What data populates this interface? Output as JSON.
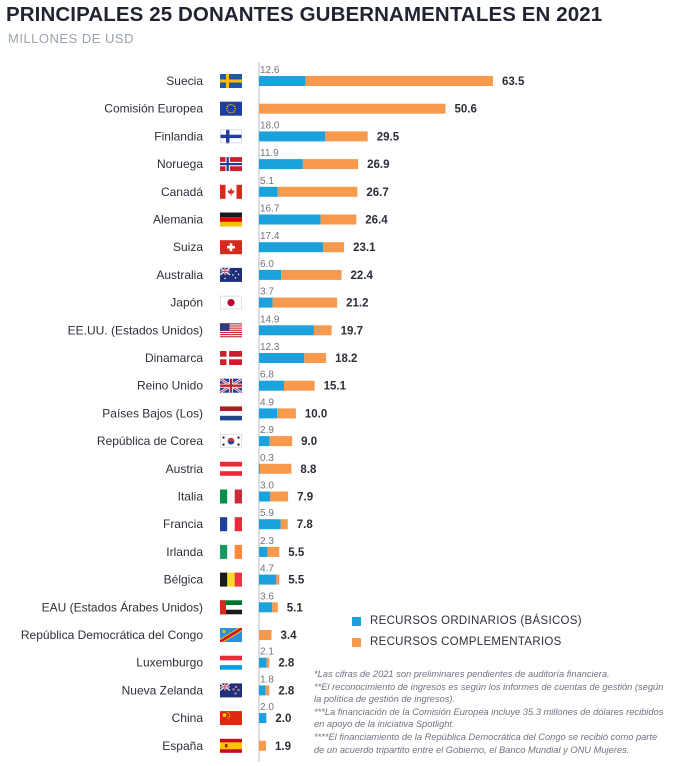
{
  "header": {
    "title": "PRINCIPALES 25 DONANTES GUBERNAMENTALES EN 2021",
    "subtitle": "MILLONES DE USD"
  },
  "colors": {
    "core": "#1ba1dc",
    "non_core": "#f79a4e",
    "axis": "#b5bcc6"
  },
  "legend": [
    {
      "name": "RECURSOS ORDINARIOS (BÁSICOS)",
      "color": "#1ba1dc"
    },
    {
      "name": "RECURSOS COMPLEMENTARIOS",
      "color": "#f79a4e"
    }
  ],
  "notes": [
    "*Las cifras de 2021 son preliminares pendientes de auditoría financiera.",
    "**El reconocimiento de ingresos es según los informes de cuentas de gestión (según la política de gestión de ingresos).",
    "***La financiación de la Comisión Europea incluye 35.3 millones de dólares recibidos en apoyo de la iniciativa Spotlight.",
    "****El financiamiento de la República Democrática del Congo se recibió como parte de un acuerdo tripartito entre el Gobierno, el Banco Mundial y ONU Mujeres."
  ],
  "chart_data": {
    "type": "bar",
    "orientation": "horizontal",
    "stacked": true,
    "title": "PRINCIPALES 25 DONANTES GUBERNAMENTALES EN 2021",
    "subtitle": "MILLONES DE USD",
    "unit": "millones de USD",
    "categories": [
      "Suecia",
      "Comisión Europea",
      "Finlandia",
      "Noruega",
      "Canadá",
      "Alemania",
      "Suiza",
      "Australia",
      "Japón",
      "EE.UU. (Estados Unidos)",
      "Dinamarca",
      "Reino Unido",
      "Países Bajos (Los)",
      "República de Corea",
      "Austria",
      "Italia",
      "Francia",
      "Irlanda",
      "Bélgica",
      "EAU (Estados Árabes Unidos)",
      "República Democrática del Congo",
      "Luxemburgo",
      "Nueva Zelanda",
      "China",
      "España"
    ],
    "flags": [
      "flag-sweden",
      "flag-eu",
      "flag-finland",
      "flag-norway",
      "flag-canada",
      "flag-germany",
      "flag-switzerland",
      "flag-australia",
      "flag-japan",
      "flag-usa",
      "flag-denmark",
      "flag-uk",
      "flag-netherlands",
      "flag-korea",
      "flag-austria",
      "flag-italy",
      "flag-france",
      "flag-ireland",
      "flag-belgium",
      "flag-uae",
      "flag-drc",
      "flag-luxembourg",
      "flag-new-zealand",
      "flag-china",
      "flag-spain"
    ],
    "series": [
      {
        "name": "RECURSOS ORDINARIOS (BÁSICOS)",
        "values": [
          12.6,
          null,
          18.0,
          11.9,
          5.1,
          16.7,
          17.4,
          6.0,
          3.7,
          14.9,
          12.3,
          6.8,
          4.9,
          2.9,
          0.3,
          3.0,
          5.9,
          2.3,
          4.7,
          3.6,
          null,
          2.1,
          1.8,
          2.0,
          null
        ]
      },
      {
        "name": "RECURSOS COMPLEMENTARIOS",
        "values": [
          50.9,
          50.6,
          11.5,
          15.0,
          21.6,
          9.7,
          5.7,
          16.4,
          17.5,
          4.8,
          5.9,
          8.3,
          5.1,
          6.1,
          8.5,
          4.9,
          1.9,
          3.2,
          0.8,
          1.5,
          3.4,
          0.7,
          1.0,
          0.0,
          1.9
        ]
      }
    ],
    "totals": [
      63.5,
      50.6,
      29.5,
      26.9,
      26.7,
      26.4,
      23.1,
      22.4,
      21.2,
      19.7,
      18.2,
      15.1,
      10.0,
      9.0,
      8.8,
      7.9,
      7.8,
      5.5,
      5.5,
      5.1,
      3.4,
      2.8,
      2.8,
      2.0,
      1.9
    ],
    "core_labels": [
      "12.6",
      "",
      "18.0",
      "11.9",
      "5.1",
      "16.7",
      "17.4",
      "6.0",
      "3.7",
      "14.9",
      "12.3",
      "6.8",
      "4.9",
      "2.9",
      "0.3",
      "3.0",
      "5.9",
      "2.3",
      "4.7",
      "3.6",
      "",
      "2.1",
      "1.8",
      "2.0",
      ""
    ],
    "total_labels": [
      "63.5",
      "50.6",
      "29.5",
      "26.9",
      "26.7",
      "26.4",
      "23.1",
      "22.4",
      "21.2",
      "19.7",
      "18.2",
      "15.1",
      "10.0",
      "9.0",
      "8.8",
      "7.9",
      "7.8",
      "5.5",
      "5.5",
      "5.1",
      "3.4",
      "2.8",
      "2.8",
      "2.0",
      "1.9"
    ],
    "xlim": [
      0,
      63.5
    ],
    "grid": false,
    "legend_position": "bottom-right"
  }
}
